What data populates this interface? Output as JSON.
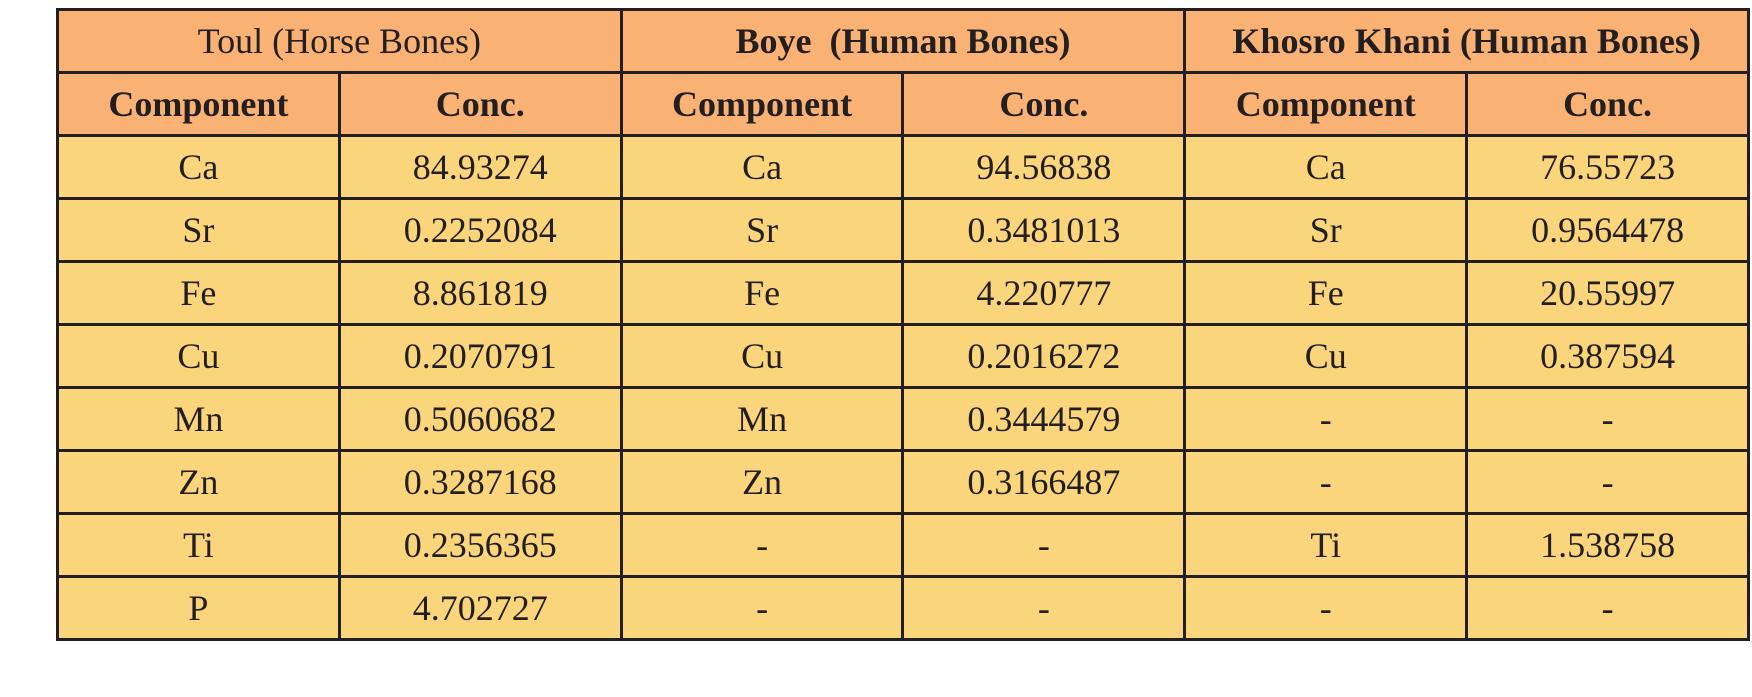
{
  "table": {
    "groups": [
      "Toul (Horse Bones)",
      "Boye  (Human Bones)",
      "Khosro Khani (Human Bones)"
    ],
    "header": [
      "Component",
      "Conc.",
      "Component",
      "Conc.",
      "Component",
      "Conc."
    ],
    "rows": [
      [
        "Ca",
        "84.93274",
        "Ca",
        "94.56838",
        "Ca",
        "76.55723"
      ],
      [
        "Sr",
        "0.2252084",
        "Sr",
        "0.3481013",
        "Sr",
        "0.9564478"
      ],
      [
        "Fe",
        "8.861819",
        "Fe",
        "4.220777",
        "Fe",
        "20.55997"
      ],
      [
        "Cu",
        "0.2070791",
        "Cu",
        "0.2016272",
        "Cu",
        "0.387594"
      ],
      [
        "Mn",
        "0.5060682",
        "Mn",
        "0.3444579",
        "-",
        "-"
      ],
      [
        "Zn",
        "0.3287168",
        "Zn",
        "0.3166487",
        "-",
        "-"
      ],
      [
        "Ti",
        "0.2356365",
        "-",
        "-",
        "Ti",
        "1.538758"
      ],
      [
        "P",
        "4.702727",
        "-",
        "-",
        "-",
        "-"
      ]
    ]
  }
}
